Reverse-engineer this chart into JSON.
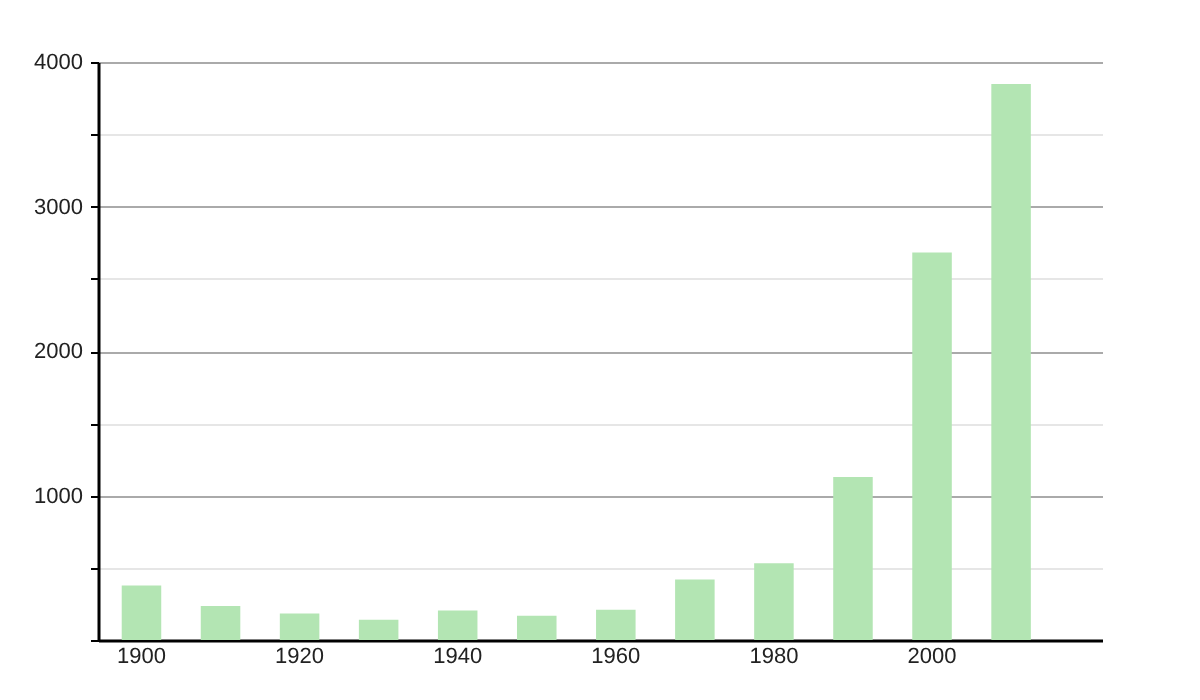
{
  "chart_data": {
    "type": "bar",
    "categories": [
      "1900",
      null,
      "1920",
      null,
      "1940",
      null,
      "1960",
      null,
      "1980",
      null,
      "2000",
      null
    ],
    "values": [
      377,
      236,
      183,
      140,
      204,
      168,
      209,
      419,
      532,
      1128,
      2682,
      3847
    ],
    "color": "#b3e5b3",
    "ylim": [
      0,
      4000
    ],
    "yticks": [
      {
        "value": 0,
        "label": null
      },
      {
        "value": 500,
        "label": null
      },
      1000,
      {
        "value": 1500,
        "label": null
      },
      2000,
      {
        "value": 2500,
        "label": null
      },
      3000,
      {
        "value": 3500,
        "label": null
      },
      4000
    ],
    "grid": "y"
  }
}
